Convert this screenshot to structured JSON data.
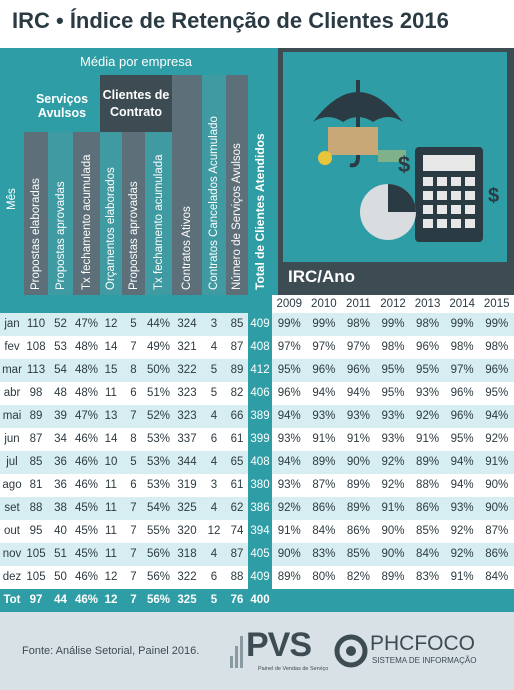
{
  "header": {
    "title": "IRC • Índice de Retenção de Clientes 2016"
  },
  "table": {
    "subtitle": "Média por empresa",
    "groups": [
      "Serviços Avulsos",
      "Clientes de Contrato"
    ],
    "columns": [
      "Mês",
      "Propostas elaboradas",
      "Propostas aprovadas",
      "Tx fechamento acumulada",
      "Orçamentos elaborados",
      "Propostas aprovadas",
      "Tx fechamento acumulada",
      "Contratos Ativos",
      "Contratos Cancelados Acumulado",
      "Número de Serviços Avulsos",
      "Total de Clientes Atendidos"
    ],
    "irc_title": "IRC/Ano",
    "years": [
      "2009",
      "2010",
      "2011",
      "2012",
      "2013",
      "2014",
      "2015"
    ],
    "rows": [
      [
        "jan",
        "110",
        "52",
        "47%",
        "12",
        "5",
        "44%",
        "324",
        "3",
        "85",
        "409",
        "99%",
        "99%",
        "98%",
        "99%",
        "98%",
        "99%",
        "99%"
      ],
      [
        "fev",
        "108",
        "53",
        "48%",
        "14",
        "7",
        "49%",
        "321",
        "4",
        "87",
        "408",
        "97%",
        "97%",
        "97%",
        "98%",
        "96%",
        "98%",
        "98%"
      ],
      [
        "mar",
        "113",
        "54",
        "48%",
        "15",
        "8",
        "50%",
        "322",
        "5",
        "89",
        "412",
        "95%",
        "96%",
        "96%",
        "95%",
        "95%",
        "97%",
        "96%"
      ],
      [
        "abr",
        "98",
        "48",
        "48%",
        "11",
        "6",
        "51%",
        "323",
        "5",
        "82",
        "406",
        "96%",
        "94%",
        "94%",
        "95%",
        "93%",
        "96%",
        "95%"
      ],
      [
        "mai",
        "89",
        "39",
        "47%",
        "13",
        "7",
        "52%",
        "323",
        "4",
        "66",
        "389",
        "94%",
        "93%",
        "93%",
        "93%",
        "92%",
        "96%",
        "94%"
      ],
      [
        "jun",
        "87",
        "34",
        "46%",
        "14",
        "8",
        "53%",
        "337",
        "6",
        "61",
        "399",
        "93%",
        "91%",
        "91%",
        "93%",
        "91%",
        "95%",
        "92%"
      ],
      [
        "jul",
        "85",
        "36",
        "46%",
        "10",
        "5",
        "53%",
        "344",
        "4",
        "65",
        "408",
        "94%",
        "89%",
        "90%",
        "92%",
        "89%",
        "94%",
        "91%"
      ],
      [
        "ago",
        "81",
        "36",
        "46%",
        "11",
        "6",
        "53%",
        "319",
        "3",
        "61",
        "380",
        "93%",
        "87%",
        "89%",
        "92%",
        "88%",
        "94%",
        "90%"
      ],
      [
        "set",
        "88",
        "38",
        "45%",
        "11",
        "7",
        "54%",
        "325",
        "4",
        "62",
        "386",
        "92%",
        "86%",
        "89%",
        "91%",
        "86%",
        "93%",
        "90%"
      ],
      [
        "out",
        "95",
        "40",
        "45%",
        "11",
        "7",
        "55%",
        "320",
        "12",
        "74",
        "394",
        "91%",
        "84%",
        "86%",
        "90%",
        "85%",
        "92%",
        "87%"
      ],
      [
        "nov",
        "105",
        "51",
        "45%",
        "11",
        "7",
        "56%",
        "318",
        "4",
        "87",
        "405",
        "90%",
        "83%",
        "85%",
        "90%",
        "84%",
        "92%",
        "86%"
      ],
      [
        "dez",
        "105",
        "50",
        "46%",
        "12",
        "7",
        "56%",
        "322",
        "6",
        "88",
        "409",
        "89%",
        "80%",
        "82%",
        "89%",
        "83%",
        "91%",
        "84%"
      ]
    ],
    "total": [
      "Tot",
      "97",
      "44",
      "46%",
      "12",
      "7",
      "56%",
      "325",
      "5",
      "76",
      "400"
    ]
  },
  "footer": {
    "source": "Fonte: Análise Setorial, Painel 2016.",
    "logo_pvs": "PVS",
    "logo_pvs_sub": "Painel de Vendas de Serviço",
    "logo_phc": "PHCFOCO",
    "logo_phc_sub": "SISTEMA DE INFORMAÇÃO"
  }
}
